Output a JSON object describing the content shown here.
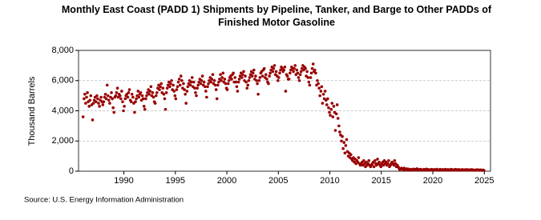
{
  "chart_data": {
    "type": "scatter",
    "title": "Monthly East Coast (PADD 1) Shipments by Pipeline, Tanker, and Barge to Other PADDs of Finished Motor Gasoline",
    "ylabel": "Thousand Barrels",
    "source": "Source: U.S. Energy Information Administration",
    "xlim": [
      1985.6,
      2025.6
    ],
    "xticks": [
      1990,
      1995,
      2000,
      2005,
      2010,
      2015,
      2020,
      2025
    ],
    "ylim": [
      0,
      8000
    ],
    "yticks": [
      0,
      {
        "value": 2000,
        "label": "2,000"
      },
      {
        "value": 4000,
        "label": "4,000"
      },
      {
        "value": 6000,
        "label": "6,000"
      },
      {
        "value": 8000,
        "label": "8,000"
      }
    ],
    "grid": true,
    "series": [
      {
        "color": "#990000",
        "x": [
          1986.04,
          1986.13,
          1986.21,
          1986.29,
          1986.38,
          1986.46,
          1986.54,
          1986.63,
          1986.71,
          1986.79,
          1986.88,
          1986.96,
          1987.04,
          1987.13,
          1987.21,
          1987.29,
          1987.38,
          1987.46,
          1987.54,
          1987.63,
          1987.71,
          1987.79,
          1987.88,
          1987.96,
          1988.04,
          1988.13,
          1988.21,
          1988.29,
          1988.38,
          1988.46,
          1988.54,
          1988.63,
          1988.71,
          1988.79,
          1988.88,
          1988.96,
          1989.04,
          1989.13,
          1989.21,
          1989.29,
          1989.38,
          1989.46,
          1989.54,
          1989.63,
          1989.71,
          1989.79,
          1989.88,
          1989.96,
          1990.04,
          1990.13,
          1990.21,
          1990.29,
          1990.38,
          1990.46,
          1990.54,
          1990.63,
          1990.71,
          1990.79,
          1990.88,
          1990.96,
          1991.04,
          1991.13,
          1991.21,
          1991.29,
          1991.38,
          1991.46,
          1991.54,
          1991.63,
          1991.71,
          1991.79,
          1991.88,
          1991.96,
          1992.04,
          1992.13,
          1992.21,
          1992.29,
          1992.38,
          1992.46,
          1992.54,
          1992.63,
          1992.71,
          1992.79,
          1992.88,
          1992.96,
          1993.04,
          1993.13,
          1993.21,
          1993.29,
          1993.38,
          1993.46,
          1993.54,
          1993.63,
          1993.71,
          1993.79,
          1993.88,
          1993.96,
          1994.04,
          1994.13,
          1994.21,
          1994.29,
          1994.38,
          1994.46,
          1994.54,
          1994.63,
          1994.71,
          1994.79,
          1994.88,
          1994.96,
          1995.04,
          1995.13,
          1995.21,
          1995.29,
          1995.38,
          1995.46,
          1995.54,
          1995.63,
          1995.71,
          1995.79,
          1995.88,
          1995.96,
          1996.04,
          1996.13,
          1996.21,
          1996.29,
          1996.38,
          1996.46,
          1996.54,
          1996.63,
          1996.71,
          1996.79,
          1996.88,
          1996.96,
          1997.04,
          1997.13,
          1997.21,
          1997.29,
          1997.38,
          1997.46,
          1997.54,
          1997.63,
          1997.71,
          1997.79,
          1997.88,
          1997.96,
          1998.04,
          1998.13,
          1998.21,
          1998.29,
          1998.38,
          1998.46,
          1998.54,
          1998.63,
          1998.71,
          1998.79,
          1998.88,
          1998.96,
          1999.04,
          1999.13,
          1999.21,
          1999.29,
          1999.38,
          1999.46,
          1999.54,
          1999.63,
          1999.71,
          1999.79,
          1999.88,
          1999.96,
          2000.04,
          2000.13,
          2000.21,
          2000.29,
          2000.38,
          2000.46,
          2000.54,
          2000.63,
          2000.71,
          2000.79,
          2000.88,
          2000.96,
          2001.04,
          2001.13,
          2001.21,
          2001.29,
          2001.38,
          2001.46,
          2001.54,
          2001.63,
          2001.71,
          2001.79,
          2001.88,
          2001.96,
          2002.04,
          2002.13,
          2002.21,
          2002.29,
          2002.38,
          2002.46,
          2002.54,
          2002.63,
          2002.71,
          2002.79,
          2002.88,
          2002.96,
          2003.04,
          2003.13,
          2003.21,
          2003.29,
          2003.38,
          2003.46,
          2003.54,
          2003.63,
          2003.71,
          2003.79,
          2003.88,
          2003.96,
          2004.04,
          2004.13,
          2004.21,
          2004.29,
          2004.38,
          2004.46,
          2004.54,
          2004.63,
          2004.71,
          2004.79,
          2004.88,
          2004.96,
          2005.04,
          2005.13,
          2005.21,
          2005.29,
          2005.38,
          2005.46,
          2005.54,
          2005.63,
          2005.71,
          2005.79,
          2005.88,
          2005.96,
          2006.04,
          2006.13,
          2006.21,
          2006.29,
          2006.38,
          2006.46,
          2006.54,
          2006.63,
          2006.71,
          2006.79,
          2006.88,
          2006.96,
          2007.04,
          2007.13,
          2007.21,
          2007.29,
          2007.38,
          2007.46,
          2007.54,
          2007.63,
          2007.71,
          2007.79,
          2007.88,
          2007.96,
          2008.04,
          2008.13,
          2008.21,
          2008.29,
          2008.38,
          2008.46,
          2008.54,
          2008.63,
          2008.71,
          2008.79,
          2008.88,
          2008.96,
          2009.04,
          2009.13,
          2009.21,
          2009.29,
          2009.38,
          2009.46,
          2009.54,
          2009.63,
          2009.71,
          2009.79,
          2009.88,
          2009.96,
          2010.04,
          2010.13,
          2010.21,
          2010.29,
          2010.38,
          2010.46,
          2010.54,
          2010.63,
          2010.71,
          2010.79,
          2010.88,
          2010.96,
          2011.04,
          2011.13,
          2011.21,
          2011.29,
          2011.38,
          2011.46,
          2011.54,
          2011.63,
          2011.71,
          2011.79,
          2011.88,
          2011.96,
          2012.04,
          2012.13,
          2012.21,
          2012.29,
          2012.38,
          2012.46,
          2012.54,
          2012.63,
          2012.71,
          2012.79,
          2012.88,
          2012.96,
          2013.04,
          2013.13,
          2013.21,
          2013.29,
          2013.38,
          2013.46,
          2013.54,
          2013.63,
          2013.71,
          2013.79,
          2013.88,
          2013.96,
          2014.04,
          2014.13,
          2014.21,
          2014.29,
          2014.38,
          2014.46,
          2014.54,
          2014.63,
          2014.71,
          2014.79,
          2014.88,
          2014.96,
          2015.04,
          2015.13,
          2015.21,
          2015.29,
          2015.38,
          2015.46,
          2015.54,
          2015.63,
          2015.71,
          2015.79,
          2015.88,
          2015.96,
          2016.04,
          2016.13,
          2016.21,
          2016.29,
          2016.38,
          2016.46,
          2016.54,
          2016.63,
          2016.71,
          2016.79,
          2016.88,
          2016.96,
          2017.04,
          2017.13,
          2017.21,
          2017.29,
          2017.38,
          2017.46,
          2017.54,
          2017.63,
          2017.71,
          2017.79,
          2017.88,
          2017.96,
          2018.04,
          2018.13,
          2018.21,
          2018.29,
          2018.38,
          2018.46,
          2018.54,
          2018.63,
          2018.71,
          2018.79,
          2018.88,
          2018.96,
          2019.04,
          2019.13,
          2019.21,
          2019.29,
          2019.38,
          2019.46,
          2019.54,
          2019.63,
          2019.71,
          2019.79,
          2019.88,
          2019.96,
          2020.04,
          2020.13,
          2020.21,
          2020.29,
          2020.38,
          2020.46,
          2020.54,
          2020.63,
          2020.71,
          2020.79,
          2020.88,
          2020.96,
          2021.04,
          2021.13,
          2021.21,
          2021.29,
          2021.38,
          2021.46,
          2021.54,
          2021.63,
          2021.71,
          2021.79,
          2021.88,
          2021.96,
          2022.04,
          2022.13,
          2022.21,
          2022.29,
          2022.38,
          2022.46,
          2022.54,
          2022.63,
          2022.71,
          2022.79,
          2022.88,
          2022.96,
          2023.04,
          2023.13,
          2023.21,
          2023.29,
          2023.38,
          2023.46,
          2023.54,
          2023.63,
          2023.71,
          2023.79,
          2023.88,
          2023.96,
          2024.04,
          2024.13,
          2024.21,
          2024.29,
          2024.38,
          2024.46,
          2024.54,
          2024.63,
          2024.71,
          2024.79,
          2024.88,
          2024.96
        ],
        "values": [
          3600,
          4800,
          5100,
          4500,
          4900,
          5200,
          4600,
          4300,
          4700,
          5000,
          4400,
          3400,
          4500,
          4700,
          4900,
          4600,
          5000,
          4800,
          4500,
          4300,
          4700,
          4900,
          4600,
          4400,
          4600,
          4900,
          5100,
          4800,
          5700,
          5000,
          4700,
          4500,
          4900,
          5200,
          4800,
          4200,
          3900,
          4900,
          5000,
          5200,
          5500,
          4900,
          5100,
          5000,
          4800,
          5300,
          4600,
          4000,
          4300,
          4800,
          5000,
          5100,
          4900,
          5200,
          5400,
          4700,
          4600,
          5100,
          4900,
          4500,
          3900,
          4600,
          4800,
          5000,
          5300,
          4900,
          5100,
          5200,
          4700,
          5000,
          4800,
          4300,
          4100,
          4800,
          5000,
          5200,
          5400,
          5100,
          5300,
          5600,
          5000,
          5200,
          4900,
          4600,
          4500,
          5000,
          5200,
          5500,
          5700,
          5400,
          5600,
          5800,
          5200,
          5500,
          5100,
          4800,
          4100,
          5200,
          5500,
          5700,
          5900,
          5600,
          5800,
          6000,
          5400,
          5700,
          5300,
          5000,
          4800,
          5400,
          5600,
          5900,
          6100,
          5700,
          6300,
          6000,
          5500,
          5800,
          5400,
          5100,
          4500,
          5300,
          5600,
          5800,
          6000,
          5700,
          5900,
          6200,
          5600,
          5900,
          5500,
          5200,
          5000,
          5500,
          5700,
          5900,
          6100,
          5800,
          6000,
          6300,
          5700,
          5900,
          5600,
          5300,
          4900,
          5600,
          5800,
          6000,
          6200,
          5900,
          6100,
          6400,
          5800,
          6000,
          5700,
          5400,
          4800,
          5700,
          5900,
          6100,
          6400,
          6000,
          6200,
          6500,
          5900,
          6100,
          5800,
          5500,
          5400,
          5800,
          6000,
          6200,
          6300,
          6100,
          6400,
          6500,
          5900,
          6200,
          5900,
          5600,
          5300,
          5900,
          6100,
          6300,
          6500,
          6200,
          6400,
          6600,
          6000,
          6300,
          5900,
          5500,
          5700,
          6000,
          6200,
          6400,
          6600,
          6300,
          6500,
          6700,
          6100,
          6300,
          6000,
          5800,
          5100,
          6000,
          6200,
          6500,
          6600,
          6300,
          6700,
          6800,
          6200,
          6400,
          6100,
          5900,
          5800,
          6300,
          6500,
          6700,
          6900,
          6600,
          6800,
          7000,
          6400,
          6600,
          6300,
          6000,
          6200,
          6500,
          6700,
          6900,
          6800,
          6600,
          6700,
          6900,
          5300,
          6400,
          6300,
          6100,
          6100,
          6500,
          6700,
          6900,
          6800,
          6600,
          6800,
          7000,
          6400,
          6700,
          6500,
          6200,
          6000,
          6400,
          6600,
          6800,
          7000,
          6700,
          6900,
          6800,
          6300,
          6600,
          6200,
          5900,
          5700,
          6200,
          6500,
          6800,
          7100,
          6600,
          6700,
          6500,
          5700,
          6000,
          5800,
          5500,
          5000,
          5300,
          5600,
          4500,
          5100,
          4800,
          5300,
          4700,
          4400,
          4800,
          4200,
          3900,
          3700,
          4100,
          4500,
          3600,
          4300,
          3900,
          2700,
          3800,
          4400,
          3500,
          3000,
          2600,
          2400,
          2000,
          2300,
          1500,
          1900,
          1200,
          1700,
          2100,
          1300,
          1000,
          1200,
          900,
          1100,
          800,
          700,
          900,
          600,
          800,
          500,
          700,
          600,
          900,
          500,
          400,
          500,
          600,
          400,
          700,
          500,
          300,
          600,
          400,
          500,
          700,
          400,
          300,
          400,
          500,
          600,
          300,
          700,
          500,
          400,
          800,
          500,
          600,
          400,
          300,
          500,
          600,
          400,
          700,
          500,
          600,
          400,
          500,
          700,
          300,
          400,
          500,
          600,
          500,
          400,
          700,
          500,
          300,
          400,
          300,
          200,
          100,
          150,
          200,
          150,
          100,
          200,
          120,
          80,
          160,
          100,
          140,
          60,
          100,
          120,
          80,
          100,
          140,
          80,
          120,
          100,
          160,
          90,
          110,
          70,
          130,
          100,
          80,
          80,
          120,
          100,
          60,
          140,
          90,
          110,
          80,
          100,
          70,
          120,
          60,
          90,
          110,
          70,
          100,
          130,
          80,
          60,
          100,
          120,
          90,
          70,
          110,
          80,
          100,
          120,
          70,
          90,
          110,
          60,
          100,
          80,
          120,
          90,
          70,
          100,
          80,
          120,
          90,
          70,
          110,
          80,
          100,
          60,
          90,
          110,
          80,
          70,
          100,
          90,
          110,
          80,
          60,
          100,
          90,
          70,
          110,
          80,
          60,
          80,
          60,
          90,
          70,
          100,
          80,
          60,
          90,
          70,
          50,
          80,
          60
        ]
      }
    ]
  }
}
